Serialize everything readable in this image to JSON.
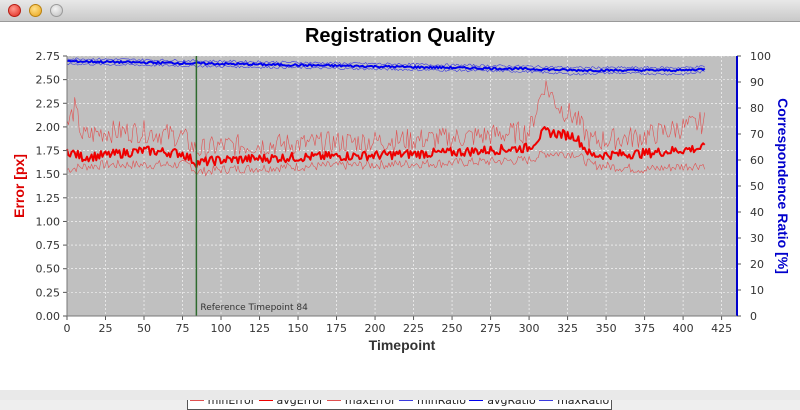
{
  "window": {
    "buttons": [
      "close",
      "minimize",
      "maximize"
    ]
  },
  "chart_data": {
    "type": "line",
    "title": "Registration Quality",
    "xlabel": "Timepoint",
    "ylabel_left": "Error [px]",
    "ylabel_right": "Correspondence Ratio  [%]",
    "xlim": [
      0,
      435
    ],
    "ylim_left": [
      0,
      2.75
    ],
    "ylim_right": [
      0,
      100
    ],
    "x_ticks": [
      0,
      25,
      50,
      75,
      100,
      125,
      150,
      175,
      200,
      225,
      250,
      275,
      300,
      325,
      350,
      375,
      400,
      425
    ],
    "y_ticks_left": [
      "0.00",
      "0.25",
      "0.50",
      "0.75",
      "1.00",
      "1.25",
      "1.50",
      "1.75",
      "2.00",
      "2.25",
      "2.50",
      "2.75"
    ],
    "y_ticks_right": [
      0,
      10,
      20,
      30,
      40,
      50,
      60,
      70,
      80,
      90,
      100
    ],
    "grid": true,
    "x_max_point": 414,
    "reference": {
      "x": 84,
      "label": "Reference  Timepoint 84",
      "color": "#2e6b2e"
    },
    "series": [
      {
        "name": "minError",
        "axis": "left",
        "color": "#e05050",
        "keypoints": [
          [
            0,
            1.55
          ],
          [
            10,
            1.58
          ],
          [
            25,
            1.6
          ],
          [
            50,
            1.6
          ],
          [
            80,
            1.6
          ],
          [
            84,
            1.52
          ],
          [
            100,
            1.55
          ],
          [
            150,
            1.58
          ],
          [
            200,
            1.6
          ],
          [
            250,
            1.62
          ],
          [
            300,
            1.65
          ],
          [
            310,
            1.72
          ],
          [
            330,
            1.72
          ],
          [
            340,
            1.6
          ],
          [
            375,
            1.55
          ],
          [
            414,
            1.6
          ]
        ],
        "noise": 0.05
      },
      {
        "name": "avgError",
        "axis": "left",
        "color": "#ee0000",
        "keypoints": [
          [
            0,
            1.75
          ],
          [
            10,
            1.68
          ],
          [
            25,
            1.7
          ],
          [
            50,
            1.75
          ],
          [
            75,
            1.72
          ],
          [
            84,
            1.62
          ],
          [
            100,
            1.65
          ],
          [
            150,
            1.68
          ],
          [
            200,
            1.7
          ],
          [
            250,
            1.73
          ],
          [
            300,
            1.78
          ],
          [
            310,
            1.95
          ],
          [
            330,
            1.9
          ],
          [
            340,
            1.7
          ],
          [
            375,
            1.72
          ],
          [
            414,
            1.78
          ]
        ],
        "noise": 0.05
      },
      {
        "name": "maxError",
        "axis": "left",
        "color": "#e05050",
        "keypoints": [
          [
            0,
            2.0
          ],
          [
            5,
            2.2
          ],
          [
            10,
            1.9
          ],
          [
            25,
            1.95
          ],
          [
            50,
            1.95
          ],
          [
            75,
            1.9
          ],
          [
            84,
            1.75
          ],
          [
            100,
            1.8
          ],
          [
            150,
            1.82
          ],
          [
            200,
            1.85
          ],
          [
            250,
            1.88
          ],
          [
            300,
            1.95
          ],
          [
            310,
            2.45
          ],
          [
            320,
            2.2
          ],
          [
            330,
            2.1
          ],
          [
            340,
            1.85
          ],
          [
            375,
            1.9
          ],
          [
            414,
            2.05
          ]
        ],
        "noise": 0.12
      },
      {
        "name": "minRatio",
        "axis": "right",
        "color": "#3a3adf",
        "keypoints": [
          [
            0,
            97
          ],
          [
            50,
            96.5
          ],
          [
            100,
            96
          ],
          [
            150,
            95.5
          ],
          [
            200,
            95
          ],
          [
            250,
            94.5
          ],
          [
            300,
            94
          ],
          [
            330,
            93
          ],
          [
            350,
            93.5
          ],
          [
            400,
            93
          ],
          [
            414,
            94
          ]
        ],
        "noise": 0.5
      },
      {
        "name": "avgRatio",
        "axis": "right",
        "color": "#0000ee",
        "keypoints": [
          [
            0,
            98
          ],
          [
            50,
            97.5
          ],
          [
            100,
            97
          ],
          [
            150,
            96.5
          ],
          [
            200,
            96
          ],
          [
            250,
            95.5
          ],
          [
            300,
            95
          ],
          [
            330,
            94.5
          ],
          [
            350,
            94.5
          ],
          [
            400,
            94.5
          ],
          [
            414,
            95
          ]
        ],
        "noise": 0.4
      },
      {
        "name": "maxRatio",
        "axis": "right",
        "color": "#3a3adf",
        "keypoints": [
          [
            0,
            99
          ],
          [
            50,
            98.5
          ],
          [
            100,
            98
          ],
          [
            150,
            97.5
          ],
          [
            200,
            97
          ],
          [
            250,
            96.5
          ],
          [
            300,
            96
          ],
          [
            330,
            95.5
          ],
          [
            350,
            95.5
          ],
          [
            400,
            95.5
          ],
          [
            414,
            96
          ]
        ],
        "noise": 0.5
      }
    ],
    "legend": [
      "minError",
      "avgError",
      "maxError",
      "minRatio",
      "avgRatio",
      "maxRatio"
    ],
    "legend_placement": "bottom-center"
  },
  "colors": {
    "plot_bg": "#c0c0c0",
    "left_axis": "#dd0000",
    "right_axis": "#0000cc"
  }
}
